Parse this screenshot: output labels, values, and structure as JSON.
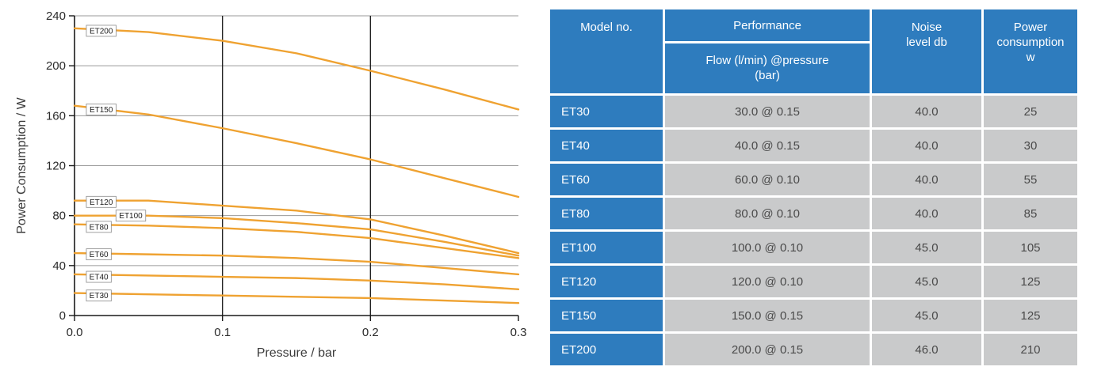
{
  "chart_data": {
    "type": "line",
    "title": "",
    "xlabel": "Pressure / bar",
    "ylabel": "Power Consumption / W",
    "xlim": [
      0,
      0.3
    ],
    "ylim": [
      0,
      240
    ],
    "xticks": [
      0,
      0.1,
      0.2,
      0.3
    ],
    "xtick_labels": [
      "0.0",
      "0.1",
      "0.2",
      "0.3"
    ],
    "yticks": [
      0,
      40,
      80,
      120,
      160,
      200,
      240
    ],
    "x": [
      0,
      0.05,
      0.1,
      0.15,
      0.2,
      0.25,
      0.3
    ],
    "line_color": "#EFA231",
    "grid_color": "#9a9a9a",
    "axis_color": "#1a1a1a",
    "legend_position": "on-curve-labels",
    "grid": true,
    "series": [
      {
        "name": "ET200",
        "values": [
          230,
          227,
          220,
          210,
          196,
          181,
          165
        ],
        "label": {
          "x": 0.008,
          "y": 228
        }
      },
      {
        "name": "ET150",
        "values": [
          168,
          161,
          150,
          138,
          125,
          110,
          95
        ],
        "label": {
          "x": 0.008,
          "y": 165
        }
      },
      {
        "name": "ET120",
        "values": [
          92,
          92,
          88,
          84,
          77,
          64,
          50
        ],
        "label": {
          "x": 0.008,
          "y": 91
        }
      },
      {
        "name": "ET100",
        "values": [
          80,
          80,
          78,
          74,
          69,
          59,
          48
        ],
        "label": {
          "x": 0.028,
          "y": 80
        }
      },
      {
        "name": "ET80",
        "values": [
          73,
          72,
          70,
          67,
          62,
          54,
          46
        ],
        "label": {
          "x": 0.008,
          "y": 71
        }
      },
      {
        "name": "ET60",
        "values": [
          50,
          49,
          48,
          46,
          43,
          38,
          33
        ],
        "label": {
          "x": 0.008,
          "y": 49
        }
      },
      {
        "name": "ET40",
        "values": [
          33,
          32,
          31,
          30,
          28,
          25,
          21
        ],
        "label": {
          "x": 0.008,
          "y": 31
        }
      },
      {
        "name": "ET30",
        "values": [
          18,
          17,
          16,
          15,
          14,
          12,
          10
        ],
        "label": {
          "x": 0.008,
          "y": 16
        }
      }
    ]
  },
  "table": {
    "header": {
      "model": "Model no.",
      "performance": "Performance",
      "performance_sub": "Flow (l/min) @pressure (bar)",
      "noise": "Noise level db",
      "power": "Power consumption w"
    },
    "rows": [
      {
        "model": "ET30",
        "performance": "30.0 @ 0.15",
        "noise": "40.0",
        "power": "25"
      },
      {
        "model": "ET40",
        "performance": "40.0 @ 0.15",
        "noise": "40.0",
        "power": "30"
      },
      {
        "model": "ET60",
        "performance": "60.0 @ 0.10",
        "noise": "40.0",
        "power": "55"
      },
      {
        "model": "ET80",
        "performance": "80.0 @ 0.10",
        "noise": "40.0",
        "power": "85"
      },
      {
        "model": "ET100",
        "performance": "100.0 @ 0.10",
        "noise": "45.0",
        "power": "105"
      },
      {
        "model": "ET120",
        "performance": "120.0 @ 0.10",
        "noise": "45.0",
        "power": "125"
      },
      {
        "model": "ET150",
        "performance": "150.0 @ 0.15",
        "noise": "45.0",
        "power": "125"
      },
      {
        "model": "ET200",
        "performance": "200.0 @ 0.15",
        "noise": "46.0",
        "power": "210"
      }
    ],
    "colors": {
      "header_bg": "#2E7CBE",
      "model_cell_bg": "#2E7CBE",
      "data_cell_bg": "#C9CACB",
      "header_text": "#ffffff",
      "data_text": "#4a4a4a"
    }
  }
}
